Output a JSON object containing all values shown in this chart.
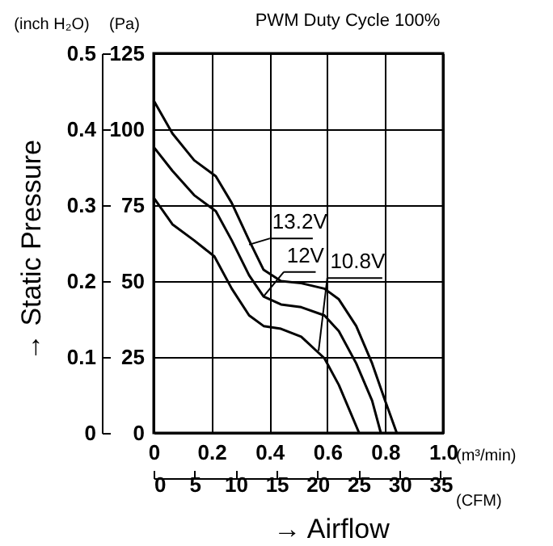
{
  "chart_data": {
    "type": "line",
    "title": "PWM Duty Cycle 100%",
    "xlabel": "→ Airflow",
    "ylabel": "(Pa)",
    "y2label": "(inch H₂O)",
    "x2label": "(CFM)",
    "x": [
      0,
      0.065,
      0.14,
      0.215,
      0.27,
      0.33,
      0.38,
      0.44,
      0.51,
      0.59,
      0.64,
      0.7,
      0.755,
      0.8,
      0.84
    ],
    "series": [
      {
        "color": "#000000",
        "values": [
          109.5,
          98.6,
          89.8,
          84.5,
          75.7,
          63.4,
          53.7,
          50,
          49.3,
          47.5,
          44,
          35.2,
          22.9,
          10.6,
          0
        ]
      },
      {
        "color": "#000000",
        "x": [
          0,
          0.065,
          0.14,
          0.215,
          0.27,
          0.33,
          0.38,
          0.44,
          0.51,
          0.59,
          0.64,
          0.7,
          0.755,
          0.785
        ],
        "values": [
          94.2,
          86.3,
          78.3,
          73,
          63.4,
          51.9,
          44.9,
          42.3,
          41.4,
          38.7,
          33.5,
          22.9,
          10.6,
          0
        ]
      },
      {
        "color": "#000000",
        "x": [
          0,
          0.065,
          0.14,
          0.21,
          0.27,
          0.33,
          0.38,
          0.44,
          0.51,
          0.59,
          0.64,
          0.71
        ],
        "values": [
          77.5,
          68.7,
          63.4,
          58.1,
          47.5,
          38.7,
          35.2,
          34.3,
          31.7,
          24.6,
          15.8,
          0
        ]
      }
    ],
    "annotations": [
      {
        "text": "13.2V",
        "x": 0.33,
        "y": 62
      },
      {
        "text": "12V",
        "x": 0.38,
        "y": 45
      },
      {
        "text": "10.8V",
        "x": 0.57,
        "y": 27
      },
      "→ Static Pressure",
      "(m³/min)"
    ],
    "xlim": [
      0,
      1
    ],
    "xticks": [
      0,
      0.2,
      0.4,
      0.6,
      0.8,
      {
        "value": 1,
        "label": "1.0"
      }
    ],
    "ylim": [
      0,
      125
    ],
    "yticks": [
      0,
      25,
      50,
      75,
      100,
      125
    ],
    "y2lim": [
      0,
      0.5
    ],
    "y2ticks": [
      0,
      0.1,
      0.2,
      0.3,
      0.4,
      0.5
    ],
    "x2lim": [
      0,
      35.3
    ],
    "x2ticks": [
      0,
      5,
      10,
      15,
      20,
      25,
      30,
      35
    ],
    "grid": true,
    "marker": "none",
    "line_style": "solid",
    "legend": false
  }
}
